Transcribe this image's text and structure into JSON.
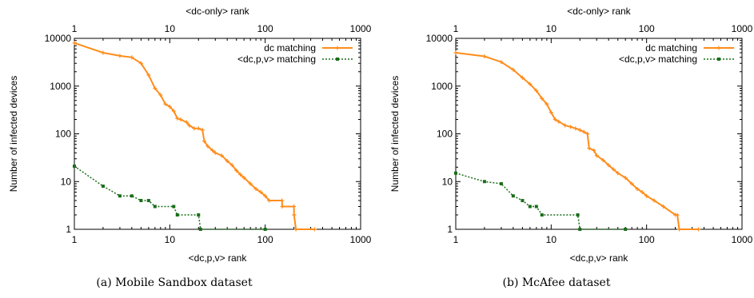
{
  "chart_data": [
    {
      "type": "line",
      "caption": "(a) Mobile Sandbox dataset",
      "xlabel": "<dc,p,v> rank",
      "x2label": "<dc-only> rank",
      "ylabel": "Number of infected devices",
      "xscale": "log",
      "yscale": "log",
      "xlim": [
        1,
        1000
      ],
      "ylim": [
        1,
        10000
      ],
      "x_ticks": [
        "1",
        "10",
        "100",
        "1000"
      ],
      "y_ticks": [
        "1",
        "10",
        "100",
        "1000",
        "10000"
      ],
      "legend_position": "top-right",
      "series": [
        {
          "name": "dc matching",
          "color": "#ff8c1a",
          "marker": "plus",
          "points": [
            [
              1,
              8000
            ],
            [
              2,
              5000
            ],
            [
              3,
              4300
            ],
            [
              4,
              4000
            ],
            [
              5,
              3000
            ],
            [
              6,
              1700
            ],
            [
              7,
              900
            ],
            [
              8,
              650
            ],
            [
              9,
              420
            ],
            [
              10,
              370
            ],
            [
              11,
              300
            ],
            [
              12,
              210
            ],
            [
              13,
              200
            ],
            [
              15,
              175
            ],
            [
              16,
              150
            ],
            [
              18,
              130
            ],
            [
              20,
              130
            ],
            [
              22,
              120
            ],
            [
              23,
              70
            ],
            [
              25,
              55
            ],
            [
              28,
              45
            ],
            [
              30,
              40
            ],
            [
              35,
              35
            ],
            [
              40,
              27
            ],
            [
              45,
              22
            ],
            [
              50,
              17
            ],
            [
              55,
              14
            ],
            [
              60,
              12
            ],
            [
              70,
              9
            ],
            [
              80,
              7
            ],
            [
              90,
              6
            ],
            [
              100,
              5
            ],
            [
              110,
              4
            ],
            [
              150,
              4
            ],
            [
              151,
              3
            ],
            [
              200,
              3
            ],
            [
              201,
              2
            ],
            [
              210,
              1
            ],
            [
              330,
              1
            ]
          ]
        },
        {
          "name": "<dc,p,v> matching",
          "color": "#1a6e1a",
          "marker": "box",
          "points": [
            [
              1,
              21
            ],
            [
              2,
              8
            ],
            [
              3,
              5
            ],
            [
              4,
              5
            ],
            [
              5,
              4
            ],
            [
              6,
              4
            ],
            [
              7,
              3
            ],
            [
              11,
              3
            ],
            [
              12,
              2
            ],
            [
              20,
              2
            ],
            [
              21,
              1
            ],
            [
              100,
              1
            ]
          ]
        }
      ]
    },
    {
      "type": "line",
      "caption": "(b) McAfee dataset",
      "xlabel": "<dc,p,v> rank",
      "x2label": "<dc-only> rank",
      "ylabel": "Number of infected devices",
      "xscale": "log",
      "yscale": "log",
      "xlim": [
        1,
        1000
      ],
      "ylim": [
        1,
        10000
      ],
      "x_ticks": [
        "1",
        "10",
        "100",
        "1000"
      ],
      "y_ticks": [
        "1",
        "10",
        "100",
        "1000",
        "10000"
      ],
      "legend_position": "top-right",
      "series": [
        {
          "name": "dc matching",
          "color": "#ff8c1a",
          "marker": "plus",
          "points": [
            [
              1,
              5000
            ],
            [
              2,
              4200
            ],
            [
              3,
              3200
            ],
            [
              4,
              2200
            ],
            [
              5,
              1500
            ],
            [
              6,
              1100
            ],
            [
              7,
              800
            ],
            [
              8,
              550
            ],
            [
              9,
              420
            ],
            [
              10,
              280
            ],
            [
              11,
              200
            ],
            [
              12,
              180
            ],
            [
              14,
              150
            ],
            [
              16,
              140
            ],
            [
              18,
              130
            ],
            [
              20,
              120
            ],
            [
              22,
              110
            ],
            [
              24,
              100
            ],
            [
              25,
              50
            ],
            [
              28,
              45
            ],
            [
              30,
              35
            ],
            [
              35,
              28
            ],
            [
              40,
              22
            ],
            [
              45,
              18
            ],
            [
              50,
              15
            ],
            [
              60,
              12
            ],
            [
              70,
              9
            ],
            [
              80,
              7
            ],
            [
              90,
              6
            ],
            [
              100,
              5
            ],
            [
              120,
              4
            ],
            [
              150,
              3
            ],
            [
              200,
              2
            ],
            [
              210,
              2
            ],
            [
              220,
              1
            ],
            [
              350,
              1
            ]
          ]
        },
        {
          "name": "<dc,p,v> matching",
          "color": "#1a6e1a",
          "marker": "box",
          "points": [
            [
              1,
              15
            ],
            [
              2,
              10
            ],
            [
              3,
              9
            ],
            [
              4,
              5
            ],
            [
              5,
              4
            ],
            [
              6,
              3
            ],
            [
              7,
              3
            ],
            [
              8,
              2
            ],
            [
              19,
              2
            ],
            [
              20,
              1
            ],
            [
              60,
              1
            ]
          ]
        }
      ]
    }
  ]
}
